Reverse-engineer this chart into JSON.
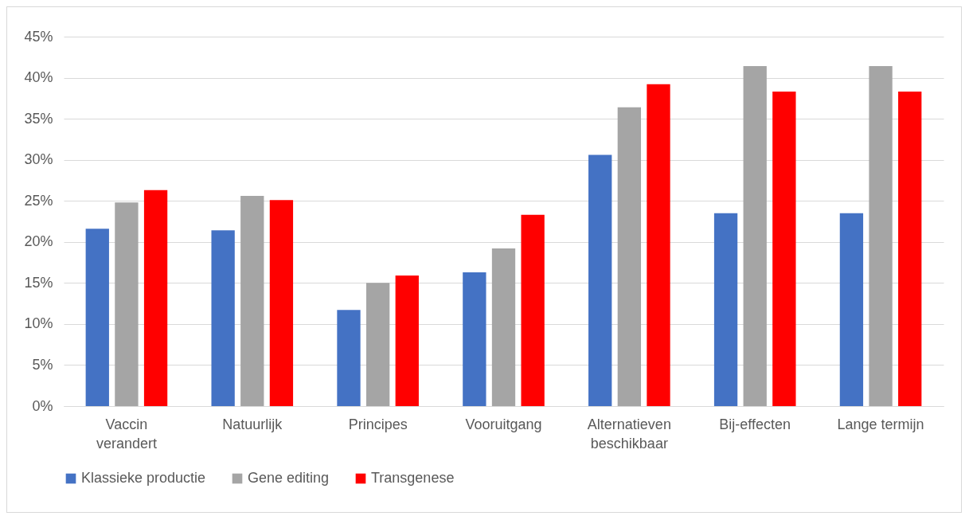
{
  "chart_data": {
    "type": "bar",
    "categories": [
      "Vaccin verandert",
      "Natuurlijk",
      "Principes",
      "Vooruitgang",
      "Alternatieven beschikbaar",
      "Bij-effecten",
      "Lange termijn"
    ],
    "series": [
      {
        "name": "Klassieke productie",
        "color": "#4472c4",
        "values": [
          0.216,
          0.214,
          0.117,
          0.163,
          0.306,
          0.235,
          0.235
        ]
      },
      {
        "name": "Gene editing",
        "color": "#a5a5a5",
        "values": [
          0.248,
          0.256,
          0.15,
          0.192,
          0.364,
          0.414,
          0.414
        ]
      },
      {
        "name": "Transgenese",
        "color": "#ff0000",
        "values": [
          0.263,
          0.251,
          0.159,
          0.233,
          0.392,
          0.383,
          0.383
        ]
      }
    ],
    "ylim": [
      0,
      0.45
    ],
    "yticks": [
      {
        "value": 0,
        "label": "0%"
      },
      {
        "value": 0.05,
        "label": "5%"
      },
      {
        "value": 0.1,
        "label": "10%"
      },
      {
        "value": 0.15,
        "label": "15%"
      },
      {
        "value": 0.2,
        "label": "20%"
      },
      {
        "value": 0.25,
        "label": "25%"
      },
      {
        "value": 0.3,
        "label": "30%"
      },
      {
        "value": 0.35,
        "label": "35%"
      },
      {
        "value": 0.4,
        "label": "40%"
      },
      {
        "value": 0.45,
        "label": "45%"
      }
    ],
    "grid": "y",
    "legend": "bottom"
  }
}
